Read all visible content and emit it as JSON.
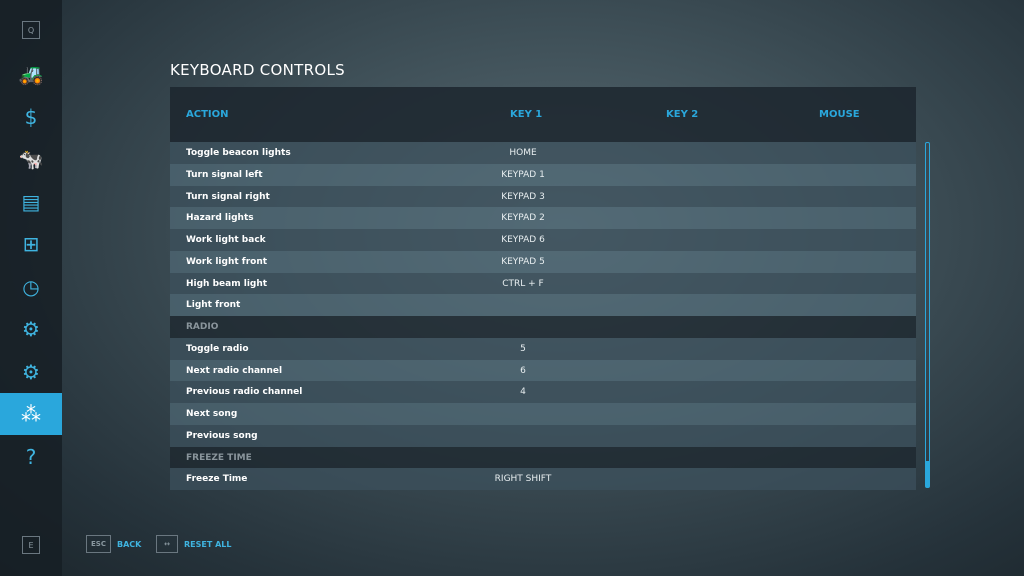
{
  "sidebar": {
    "top_key": "Q",
    "bottom_key": "E",
    "items": [
      {
        "icon": "tractor-icon",
        "glyph": "🚜"
      },
      {
        "icon": "money-icon",
        "glyph": "$"
      },
      {
        "icon": "cow-icon",
        "glyph": "🐄"
      },
      {
        "icon": "contracts-icon",
        "glyph": "▤"
      },
      {
        "icon": "production-icon",
        "glyph": "⊞"
      },
      {
        "icon": "statistics-icon",
        "glyph": "◷"
      },
      {
        "icon": "vehicle-settings-icon",
        "glyph": "⚙"
      },
      {
        "icon": "settings-icon",
        "glyph": "⚙"
      },
      {
        "icon": "controls-icon",
        "glyph": "⁂",
        "active": true
      },
      {
        "icon": "help-icon",
        "glyph": "?"
      }
    ]
  },
  "page_title": "KEYBOARD CONTROLS",
  "table": {
    "headers": [
      "ACTION",
      "KEY 1",
      "KEY 2",
      "MOUSE"
    ],
    "rows": [
      {
        "action": "Toggle beacon lights",
        "key1": "HOME"
      },
      {
        "action": "Turn signal left",
        "key1": "KEYPAD 1"
      },
      {
        "action": "Turn signal right",
        "key1": "KEYPAD 3"
      },
      {
        "action": "Hazard lights",
        "key1": "KEYPAD 2"
      },
      {
        "action": "Work light back",
        "key1": "KEYPAD 6"
      },
      {
        "action": "Work light front",
        "key1": "KEYPAD 5"
      },
      {
        "action": "High beam light",
        "key1": "CTRL + F"
      },
      {
        "action": "Light front",
        "key1": ""
      },
      {
        "action": "RADIO",
        "section": true
      },
      {
        "action": "Toggle radio",
        "key1": "5"
      },
      {
        "action": "Next radio channel",
        "key1": "6"
      },
      {
        "action": "Previous radio channel",
        "key1": "4"
      },
      {
        "action": "Next song",
        "key1": ""
      },
      {
        "action": "Previous song",
        "key1": ""
      },
      {
        "action": "FREEZE TIME",
        "section": true
      },
      {
        "action": "Freeze Time",
        "key1": "RIGHT SHIFT"
      }
    ]
  },
  "footer": {
    "back_key": "ESC",
    "back_label": "BACK",
    "reset_key": "↔",
    "reset_label": "RESET ALL"
  },
  "colors": {
    "accent": "#2aa7dc"
  }
}
